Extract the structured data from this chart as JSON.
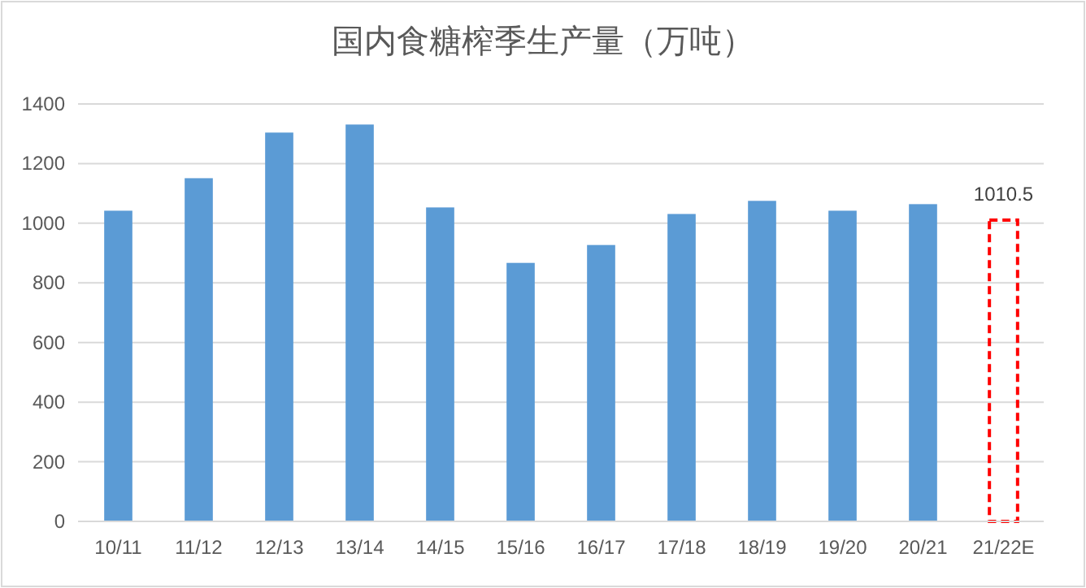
{
  "chart_data": {
    "type": "bar",
    "title": "国内食糖榨季生产量（万吨）",
    "categories": [
      "10/11",
      "11/12",
      "12/13",
      "13/14",
      "14/15",
      "15/16",
      "16/17",
      "17/18",
      "18/19",
      "19/20",
      "20/21",
      "21/22E"
    ],
    "stacked": true,
    "series": [
      {
        "color": "#5b9bd5",
        "values": [
          1042,
          1151,
          1304,
          1331,
          1053,
          867,
          927,
          1031,
          1075,
          1042,
          1064,
          null
        ]
      },
      {
        "color": "#ff0000",
        "line_style": "dashed",
        "values": [
          null,
          null,
          null,
          null,
          null,
          null,
          null,
          null,
          null,
          null,
          null,
          1010.5
        ],
        "value_labels": [
          null,
          null,
          null,
          null,
          null,
          null,
          null,
          null,
          null,
          null,
          null,
          "1010.5"
        ]
      }
    ],
    "ylim": [
      0,
      1400
    ],
    "yticks": [
      0,
      200,
      400,
      600,
      800,
      1000,
      1200,
      1400
    ],
    "grid": "y"
  }
}
